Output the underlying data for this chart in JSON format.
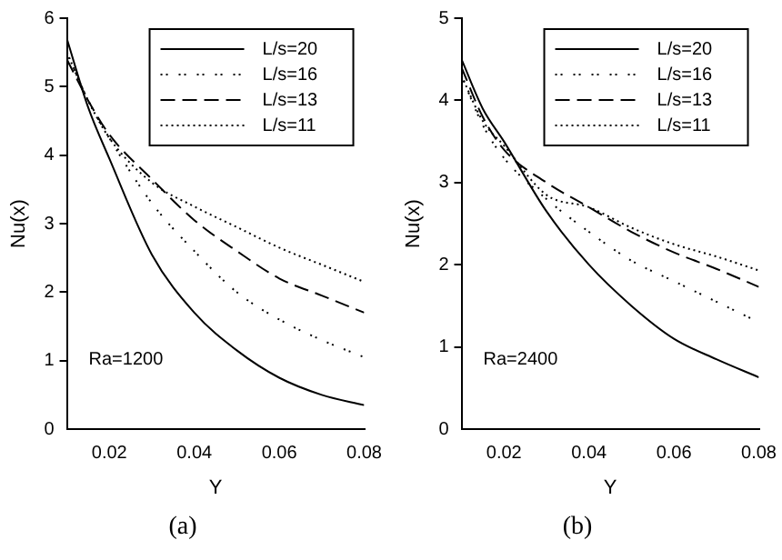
{
  "chart_data": [
    {
      "type": "line",
      "title": "(a)",
      "xlabel": "Y",
      "ylabel": "Nu(x)",
      "x": [
        0.01,
        0.015,
        0.02,
        0.03,
        0.04,
        0.05,
        0.06,
        0.07,
        0.08
      ],
      "xlim": [
        0.01,
        0.08
      ],
      "xticks": [
        0.02,
        0.04,
        0.06,
        0.08
      ],
      "ylim": [
        0,
        6
      ],
      "yticks": [
        0,
        1,
        2,
        3,
        4,
        5,
        6
      ],
      "grid": false,
      "legend": "top right",
      "marker": "none",
      "annotations": [
        "Ra=1200"
      ],
      "series": [
        {
          "name": "L/s=20",
          "color": "#000000",
          "line_style": "solid",
          "values": [
            5.7,
            4.7,
            3.95,
            2.55,
            1.7,
            1.15,
            0.75,
            0.5,
            0.35
          ]
        },
        {
          "name": "L/s=16",
          "color": "#000000",
          "line_style": "dotted",
          "values": [
            5.5,
            4.8,
            4.25,
            3.3,
            2.6,
            2.0,
            1.6,
            1.3,
            1.05
          ]
        },
        {
          "name": "L/s=13",
          "color": "#000000",
          "line_style": "dashed",
          "values": [
            5.4,
            4.8,
            4.3,
            3.65,
            3.05,
            2.6,
            2.2,
            1.95,
            1.7
          ]
        },
        {
          "name": "L/s=11",
          "color": "#000000",
          "line_style": "dotted",
          "values": [
            5.5,
            4.8,
            4.25,
            3.6,
            3.25,
            2.95,
            2.65,
            2.4,
            2.15
          ]
        }
      ]
    },
    {
      "type": "line",
      "title": "(b)",
      "xlabel": "Y",
      "ylabel": "Nu(x)",
      "x": [
        0.01,
        0.015,
        0.02,
        0.03,
        0.04,
        0.05,
        0.06,
        0.07,
        0.08
      ],
      "xlim": [
        0.01,
        0.08
      ],
      "xticks": [
        0.02,
        0.04,
        0.06,
        0.08
      ],
      "ylim": [
        0,
        5
      ],
      "yticks": [
        0,
        1,
        2,
        3,
        4,
        5
      ],
      "grid": false,
      "legend": "top right",
      "marker": "none",
      "annotations": [
        "Ra=2400"
      ],
      "series": [
        {
          "name": "L/s=20",
          "color": "#000000",
          "line_style": "solid",
          "values": [
            4.5,
            3.9,
            3.5,
            2.65,
            2.0,
            1.5,
            1.1,
            0.85,
            0.63
          ]
        },
        {
          "name": "L/s=16",
          "color": "#000000",
          "line_style": "dotted",
          "values": [
            4.3,
            3.7,
            3.3,
            2.8,
            2.4,
            2.05,
            1.8,
            1.55,
            1.3
          ]
        },
        {
          "name": "L/s=13",
          "color": "#000000",
          "line_style": "dashed",
          "values": [
            4.4,
            3.8,
            3.4,
            3.0,
            2.7,
            2.4,
            2.15,
            1.95,
            1.73
          ]
        },
        {
          "name": "L/s=11",
          "color": "#000000",
          "line_style": "dotted",
          "values": [
            4.3,
            3.75,
            3.45,
            2.85,
            2.7,
            2.45,
            2.25,
            2.1,
            1.93
          ]
        }
      ]
    }
  ]
}
